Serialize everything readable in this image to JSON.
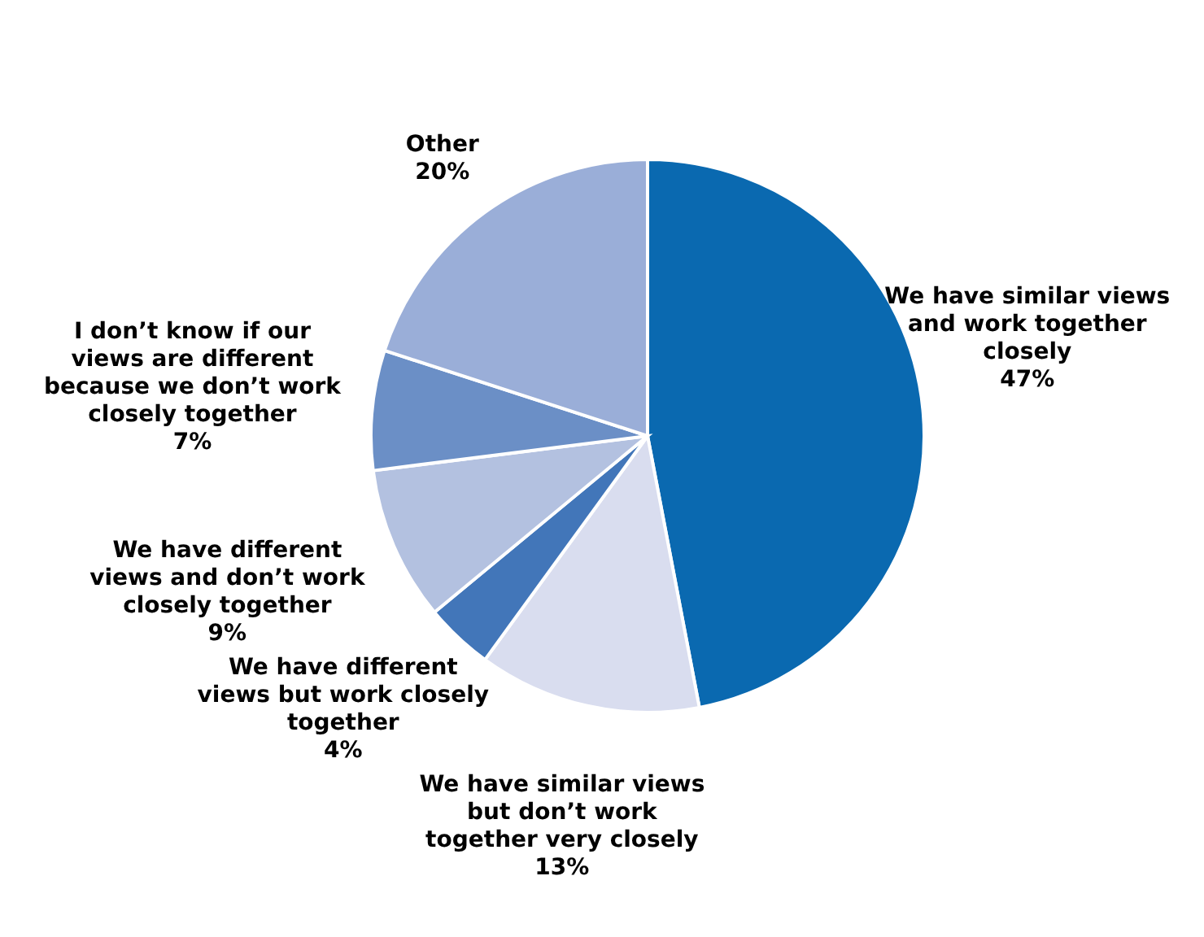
{
  "chart_data": {
    "type": "pie",
    "categories": [
      "We have similar views and work together closely",
      "We have similar views but don’t work together very closely",
      "We have different views but work closely together",
      "We have different views and don’t work closely together",
      "I don’t know if our views are different because we don’t work closely together",
      "Other"
    ],
    "values": [
      47,
      13,
      4,
      9,
      7,
      20
    ],
    "colors": [
      "#0a69b0",
      "#d9ddef",
      "#4276b9",
      "#b3c1e0",
      "#6b8fc6",
      "#9aaed8"
    ],
    "value_labels": [
      "47%",
      "13%",
      "4%",
      "9%",
      "7%",
      "20%"
    ]
  }
}
